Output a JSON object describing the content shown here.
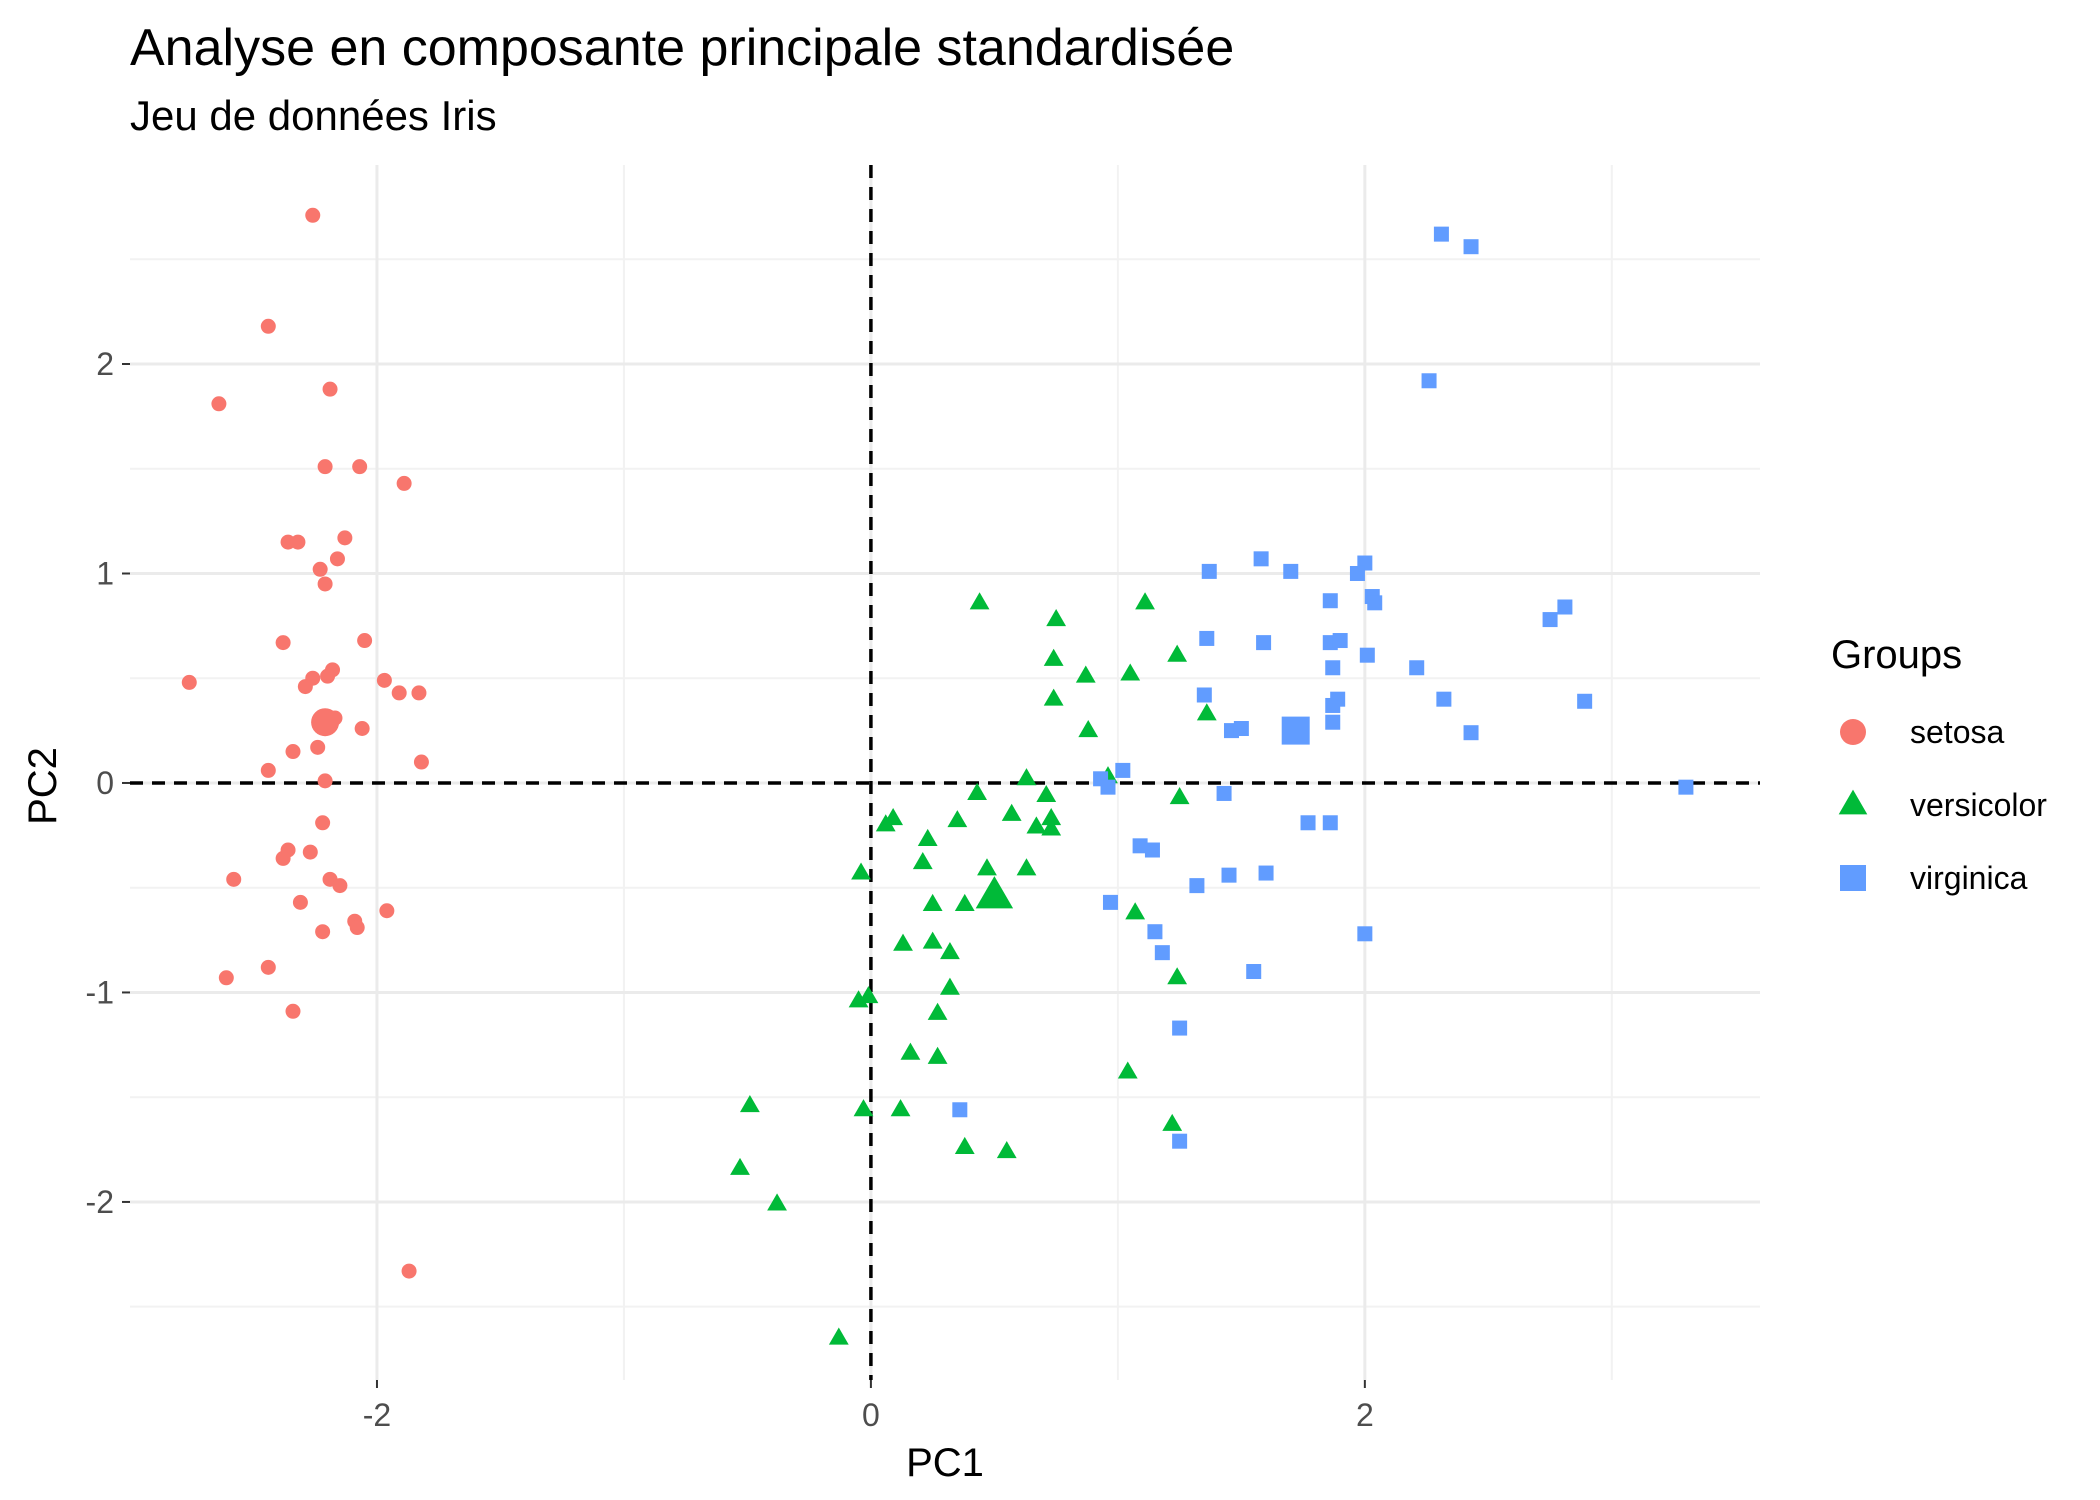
{
  "chart_data": {
    "type": "scatter",
    "title": "Analyse en composante principale standardisée",
    "subtitle": "Jeu de données Iris",
    "xlabel": "PC1",
    "ylabel": "PC2",
    "xlim": [
      -3.0,
      3.6
    ],
    "ylim": [
      -2.85,
      2.95
    ],
    "xticks": [
      -2,
      0,
      2
    ],
    "yticks": [
      -2,
      -1,
      0,
      1,
      2
    ],
    "reference_lines": {
      "x": 0,
      "y": 0,
      "style": "dashed"
    },
    "grid": true,
    "legend": {
      "title": "Groups",
      "position": "right"
    },
    "series": [
      {
        "name": "setosa",
        "color": "#F8766D",
        "shape": "circle",
        "centroid": [
          -2.21,
          0.29
        ],
        "points": [
          [
            -2.26,
            2.71
          ],
          [
            -2.44,
            2.18
          ],
          [
            -2.64,
            1.81
          ],
          [
            -2.19,
            1.88
          ],
          [
            -2.21,
            1.51
          ],
          [
            -2.07,
            1.51
          ],
          [
            -1.89,
            1.43
          ],
          [
            -2.36,
            1.15
          ],
          [
            -2.32,
            1.15
          ],
          [
            -2.13,
            1.17
          ],
          [
            -2.16,
            1.07
          ],
          [
            -2.23,
            1.02
          ],
          [
            -2.21,
            0.95
          ],
          [
            -2.38,
            0.67
          ],
          [
            -2.05,
            0.68
          ],
          [
            -2.76,
            0.48
          ],
          [
            -2.26,
            0.5
          ],
          [
            -2.29,
            0.46
          ],
          [
            -2.18,
            0.54
          ],
          [
            -2.2,
            0.51
          ],
          [
            -1.97,
            0.49
          ],
          [
            -1.91,
            0.43
          ],
          [
            -1.83,
            0.43
          ],
          [
            -2.06,
            0.26
          ],
          [
            -2.21,
            0.28
          ],
          [
            -2.17,
            0.31
          ],
          [
            -2.34,
            0.15
          ],
          [
            -2.24,
            0.17
          ],
          [
            -2.44,
            0.06
          ],
          [
            -2.21,
            0.01
          ],
          [
            -1.82,
            0.1
          ],
          [
            -2.22,
            -0.19
          ],
          [
            -2.27,
            -0.33
          ],
          [
            -2.36,
            -0.32
          ],
          [
            -2.38,
            -0.36
          ],
          [
            -2.58,
            -0.46
          ],
          [
            -2.19,
            -0.46
          ],
          [
            -2.15,
            -0.49
          ],
          [
            -2.31,
            -0.57
          ],
          [
            -1.96,
            -0.61
          ],
          [
            -2.09,
            -0.66
          ],
          [
            -2.08,
            -0.69
          ],
          [
            -2.22,
            -0.71
          ],
          [
            -2.44,
            -0.88
          ],
          [
            -2.61,
            -0.93
          ],
          [
            -2.34,
            -1.09
          ],
          [
            -1.87,
            -2.33
          ]
        ]
      },
      {
        "name": "versicolor",
        "color": "#00BA38",
        "shape": "triangle",
        "centroid": [
          0.5,
          -0.54
        ],
        "points": [
          [
            0.44,
            0.86
          ],
          [
            1.11,
            0.86
          ],
          [
            0.75,
            0.78
          ],
          [
            1.24,
            0.61
          ],
          [
            0.74,
            0.59
          ],
          [
            0.87,
            0.51
          ],
          [
            1.05,
            0.52
          ],
          [
            0.74,
            0.4
          ],
          [
            0.88,
            0.25
          ],
          [
            1.36,
            0.33
          ],
          [
            0.63,
            0.02
          ],
          [
            0.71,
            -0.06
          ],
          [
            0.43,
            -0.05
          ],
          [
            1.25,
            -0.07
          ],
          [
            0.57,
            -0.15
          ],
          [
            0.73,
            -0.17
          ],
          [
            0.35,
            -0.18
          ],
          [
            0.67,
            -0.21
          ],
          [
            0.09,
            -0.17
          ],
          [
            0.06,
            -0.2
          ],
          [
            0.73,
            -0.22
          ],
          [
            0.96,
            0.03
          ],
          [
            0.23,
            -0.27
          ],
          [
            0.21,
            -0.38
          ],
          [
            -0.04,
            -0.43
          ],
          [
            0.47,
            -0.41
          ],
          [
            0.63,
            -0.41
          ],
          [
            0.38,
            -0.58
          ],
          [
            0.25,
            -0.58
          ],
          [
            1.07,
            -0.62
          ],
          [
            0.13,
            -0.77
          ],
          [
            0.25,
            -0.76
          ],
          [
            0.32,
            -0.81
          ],
          [
            1.24,
            -0.93
          ],
          [
            0.32,
            -0.98
          ],
          [
            0.27,
            -1.1
          ],
          [
            -0.05,
            -1.04
          ],
          [
            -0.01,
            -1.02
          ],
          [
            0.16,
            -1.29
          ],
          [
            0.27,
            -1.31
          ],
          [
            1.04,
            -1.38
          ],
          [
            -0.49,
            -1.54
          ],
          [
            -0.03,
            -1.56
          ],
          [
            0.12,
            -1.56
          ],
          [
            1.22,
            -1.63
          ],
          [
            0.38,
            -1.74
          ],
          [
            0.55,
            -1.76
          ],
          [
            -0.53,
            -1.84
          ],
          [
            -0.38,
            -2.01
          ],
          [
            -0.13,
            -2.65
          ]
        ]
      },
      {
        "name": "virginica",
        "color": "#619CFF",
        "shape": "square",
        "centroid": [
          1.72,
          0.25
        ],
        "points": [
          [
            2.31,
            2.62
          ],
          [
            2.43,
            2.56
          ],
          [
            2.26,
            1.92
          ],
          [
            1.58,
            1.07
          ],
          [
            1.37,
            1.01
          ],
          [
            1.7,
            1.01
          ],
          [
            2.0,
            1.05
          ],
          [
            1.97,
            1.0
          ],
          [
            2.03,
            0.89
          ],
          [
            2.04,
            0.86
          ],
          [
            1.86,
            0.87
          ],
          [
            2.81,
            0.84
          ],
          [
            2.75,
            0.78
          ],
          [
            1.36,
            0.69
          ],
          [
            1.59,
            0.67
          ],
          [
            1.86,
            0.67
          ],
          [
            1.9,
            0.68
          ],
          [
            2.01,
            0.61
          ],
          [
            1.87,
            0.55
          ],
          [
            2.21,
            0.55
          ],
          [
            1.35,
            0.42
          ],
          [
            1.89,
            0.4
          ],
          [
            1.87,
            0.37
          ],
          [
            2.32,
            0.4
          ],
          [
            2.89,
            0.39
          ],
          [
            1.87,
            0.29
          ],
          [
            1.46,
            0.25
          ],
          [
            1.5,
            0.26
          ],
          [
            2.43,
            0.24
          ],
          [
            1.02,
            0.06
          ],
          [
            0.93,
            0.02
          ],
          [
            0.96,
            -0.02
          ],
          [
            3.3,
            -0.02
          ],
          [
            1.43,
            -0.05
          ],
          [
            1.77,
            -0.19
          ],
          [
            1.86,
            -0.19
          ],
          [
            1.09,
            -0.3
          ],
          [
            1.14,
            -0.32
          ],
          [
            1.6,
            -0.43
          ],
          [
            1.45,
            -0.44
          ],
          [
            1.32,
            -0.49
          ],
          [
            0.97,
            -0.57
          ],
          [
            1.15,
            -0.71
          ],
          [
            2.0,
            -0.72
          ],
          [
            1.18,
            -0.81
          ],
          [
            1.55,
            -0.9
          ],
          [
            1.25,
            -1.17
          ],
          [
            0.36,
            -1.56
          ],
          [
            1.25,
            -1.71
          ]
        ]
      }
    ]
  }
}
